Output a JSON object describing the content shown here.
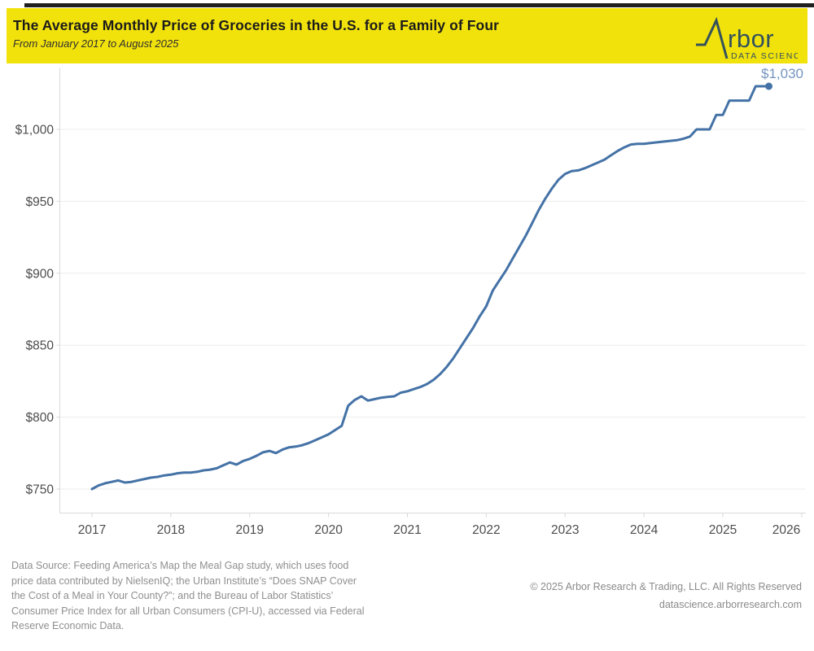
{
  "header": {
    "title": "The Average Monthly Price of Groceries in the U.S. for a Family of Four",
    "subtitle": "From January 2017 to August 2025",
    "banner_color": "#F2E20C",
    "brand": {
      "word_rest": "rbor",
      "tagline": "DATA SCIENCE"
    }
  },
  "chart_data": {
    "type": "line",
    "title": "The Average Monthly Price of Groceries in the U.S. for a Family of Four",
    "subtitle": "From January 2017 to August 2025",
    "unit": "USD per month",
    "x_monthly": {
      "start": "2017-01",
      "end": "2025-08",
      "points": 104
    },
    "x_label_years": [
      "2017",
      "2018",
      "2019",
      "2020",
      "2021",
      "2022",
      "2023",
      "2024",
      "2025",
      "2026"
    ],
    "y_ticks": [
      750,
      800,
      850,
      900,
      950,
      1000
    ],
    "y_tick_labels": [
      "$750",
      "$800",
      "$850",
      "$900",
      "$950",
      "$1,000"
    ],
    "ylim": [
      734,
      1042
    ],
    "grid": "horizontal",
    "legend_position": "none",
    "end_label": "$1,030",
    "end_value": 1030,
    "end_label_color": "#7594C0",
    "series": [
      {
        "name": "Average monthly grocery price for a family of four",
        "color": "#4472A6",
        "values": [
          750,
          752.5,
          754,
          755,
          756,
          754.5,
          755,
          756,
          757,
          758,
          758.5,
          759.5,
          760,
          761,
          761.5,
          761.5,
          762,
          763,
          763.5,
          764.5,
          766.5,
          768.5,
          767,
          769.5,
          771,
          773,
          775.5,
          776.5,
          775,
          777.5,
          779,
          779.5,
          780.5,
          782,
          784,
          786,
          788,
          791,
          794,
          808,
          812,
          814.5,
          811.5,
          812.5,
          813.5,
          814,
          814.5,
          817,
          818,
          819.5,
          821,
          823,
          826,
          830,
          835,
          841,
          848,
          855,
          862,
          870,
          877,
          888,
          895,
          902,
          910,
          918,
          926,
          935,
          944,
          952,
          959,
          965,
          969,
          971,
          971.5,
          973,
          975,
          977,
          979,
          982,
          985,
          987.5,
          989.5,
          990,
          990,
          990.5,
          991,
          991.5,
          992,
          992.5,
          993.5,
          995,
          1000,
          1000,
          1000,
          1010,
          1010,
          1020,
          1020,
          1020,
          1020,
          1030,
          1030,
          1030
        ]
      }
    ]
  },
  "footer": {
    "source_lines": [
      "Data Source: Feeding America’s Map the Meal Gap study, which uses food",
      "price data contributed by NielsenIQ; the Urban Institute’s “Does SNAP Cover",
      "the Cost of a Meal in Your County?”; and the Bureau of Labor Statistics’",
      "Consumer Price Index for all Urban Consumers (CPI-U), accessed via Federal",
      "Reserve Economic Data."
    ],
    "copyright": "© 2025 Arbor Research & Trading, LLC. All Rights Reserved",
    "website": "datascience.arborresearch.com"
  }
}
